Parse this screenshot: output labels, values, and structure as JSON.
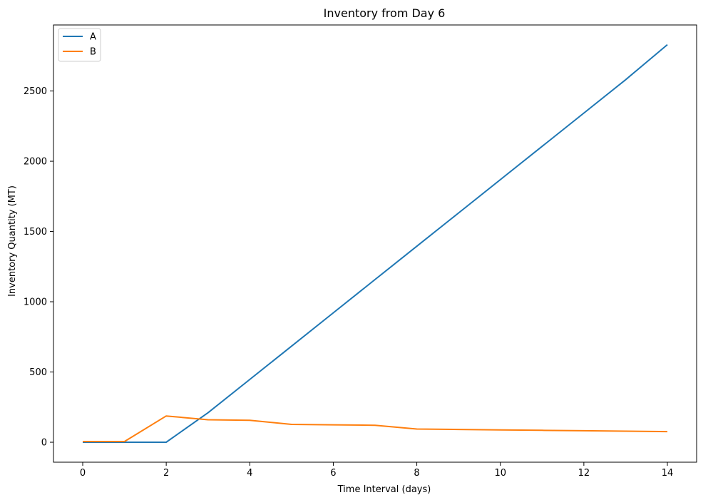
{
  "chart_data": {
    "type": "line",
    "title": "Inventory from Day 6",
    "xlabel": "Time Interval (days)",
    "ylabel": "Inventory Quantity (MT)",
    "xlim": [
      -0.7,
      14.7
    ],
    "ylim": [
      -142,
      2970
    ],
    "xticks": [
      0,
      2,
      4,
      6,
      8,
      10,
      12,
      14
    ],
    "yticks": [
      0,
      500,
      1000,
      1500,
      2000,
      2500
    ],
    "grid": false,
    "legend_position": "top-left",
    "series": [
      {
        "name": "A",
        "color": "#1f77b4",
        "x": [
          0,
          1,
          2,
          3,
          4,
          5,
          6,
          7,
          8,
          9,
          10,
          11,
          12,
          13,
          14
        ],
        "y": [
          0,
          0,
          0,
          210,
          447,
          684,
          921,
          1158,
          1395,
          1632,
          1869,
          2106,
          2343,
          2580,
          2830
        ]
      },
      {
        "name": "B",
        "color": "#ff7f0e",
        "x": [
          0,
          1,
          2,
          3,
          4,
          5,
          6,
          7,
          8,
          9,
          10,
          11,
          12,
          13,
          14
        ],
        "y": [
          5,
          5,
          187,
          160,
          156,
          127,
          124,
          121,
          94,
          91,
          88,
          85,
          82,
          79,
          76
        ]
      }
    ]
  }
}
